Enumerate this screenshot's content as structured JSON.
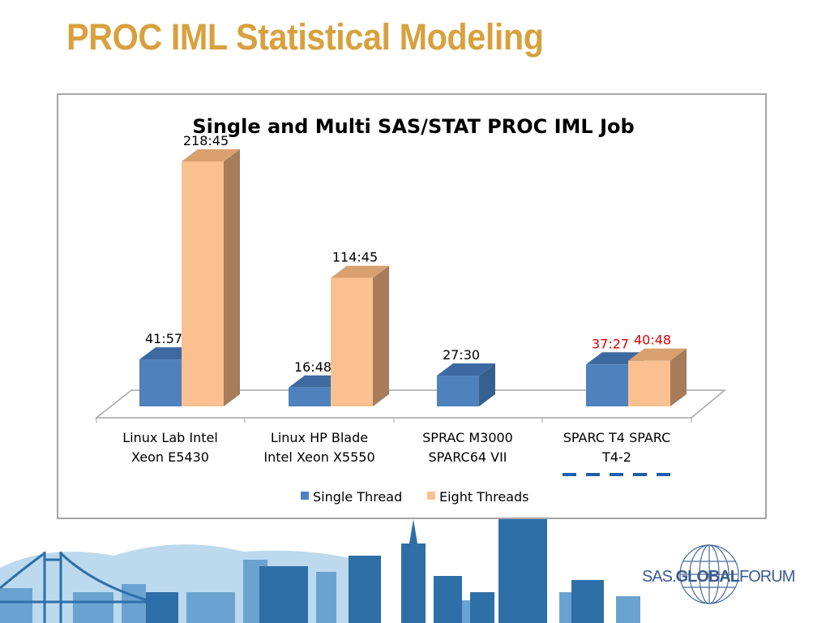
{
  "slide": {
    "title": "PROC IML Statistical Modeling"
  },
  "logo": {
    "text_sas": "SAS",
    "text_global": "GLOBAL",
    "text_forum": "FORUM"
  },
  "colors": {
    "title": "#D8A13E",
    "single": "#4F81BD",
    "eight": "#FAC090",
    "highlight_label": "#E00000",
    "dash": "#1F5FA8"
  },
  "chart_data": {
    "type": "bar",
    "style": "3d-clustered-column",
    "title": "Single and Multi SAS/STAT PROC IML Job",
    "categories": [
      [
        "Linux Lab Intel",
        "Xeon E5430"
      ],
      [
        "Linux HP Blade",
        "Intel Xeon X5550"
      ],
      [
        "SPRAC M3000",
        "SPARC64 VII"
      ],
      [
        "SPARC T4 SPARC",
        "T4-2"
      ]
    ],
    "series": [
      {
        "name": "Single Thread",
        "color": "#4F81BD",
        "values": [
          41.95,
          16.8,
          27.5,
          37.45
        ],
        "labels": [
          "41:57",
          "16:48",
          "27:30",
          "37:27"
        ]
      },
      {
        "name": "Eight Threads",
        "color": "#FAC090",
        "values": [
          218.75,
          114.75,
          null,
          40.8
        ],
        "labels": [
          "218:45",
          "114:45",
          null,
          "40:48"
        ]
      }
    ],
    "value_unit": "minutes:seconds",
    "highlighted_category": 3,
    "legend": "bottom",
    "grid": false,
    "ylim": [
      0,
      220
    ]
  }
}
